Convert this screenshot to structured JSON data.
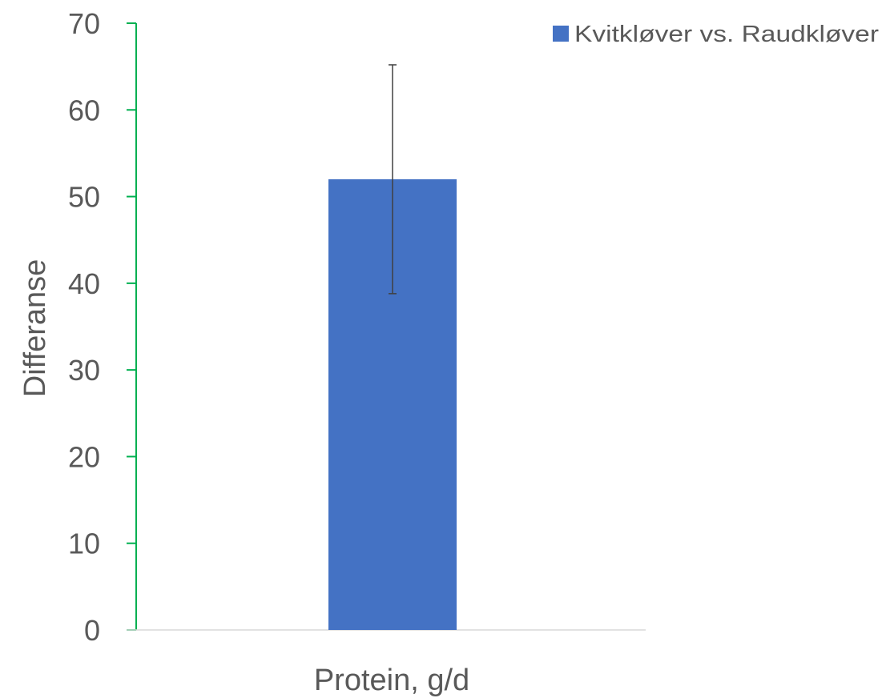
{
  "chart_data": {
    "type": "bar",
    "categories": [
      ""
    ],
    "series": [
      {
        "name": "Kvitkløver vs. Raudkløver",
        "values": [
          52
        ],
        "error": [
          13.2
        ],
        "color": "#4472C4"
      }
    ],
    "xlabel": "Protein, g/d",
    "ylabel": "Differanse",
    "ylim": [
      0,
      70
    ],
    "yticks": [
      0,
      10,
      20,
      30,
      40,
      50,
      60,
      70
    ],
    "grid": false,
    "legend": "top-right",
    "y_axis_color": "#00B050",
    "x_axis_color": "#D9D9D9",
    "error_bar_color": "#404040"
  }
}
